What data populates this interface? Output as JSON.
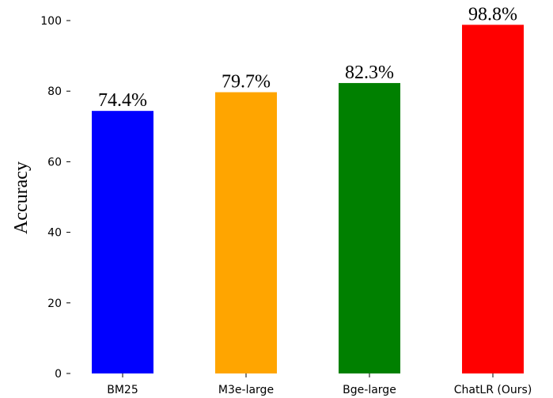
{
  "chart_data": {
    "type": "bar",
    "categories": [
      "BM25",
      "M3e-large",
      "Bge-large",
      "ChatLR (Ours)"
    ],
    "values": [
      74.4,
      79.7,
      82.3,
      98.8
    ],
    "value_labels": [
      "74.4%",
      "79.7%",
      "82.3%",
      "98.8%"
    ],
    "colors": [
      "#0000ff",
      "#ffa500",
      "#008000",
      "#ff0000"
    ],
    "title": "",
    "xlabel": "",
    "ylabel": "Accuracy",
    "ylim": [
      0,
      100
    ],
    "yticks": [
      0,
      20,
      40,
      60,
      80,
      100
    ],
    "grid": false,
    "legend": "none"
  }
}
